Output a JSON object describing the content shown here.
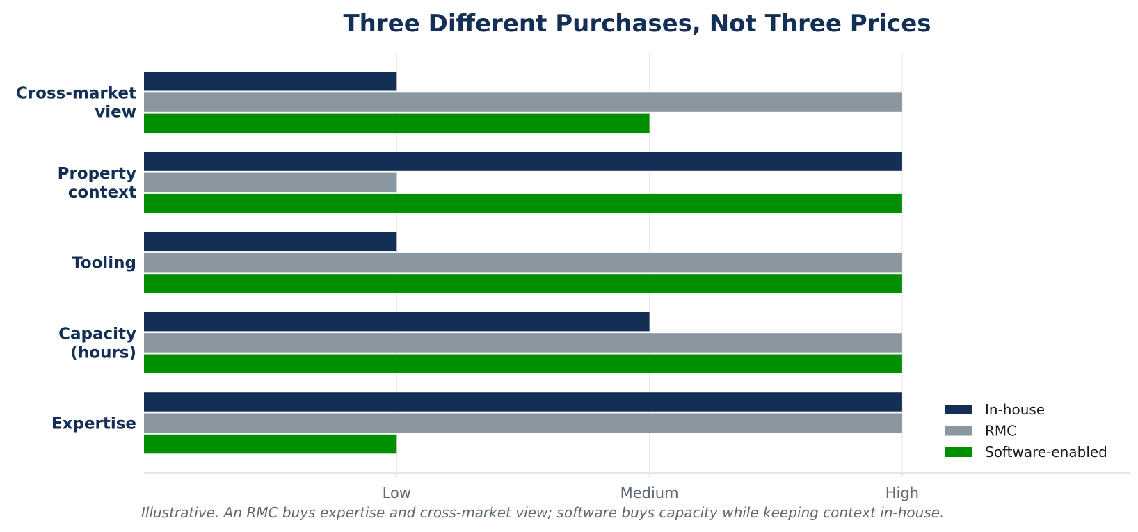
{
  "chart_data": {
    "type": "bar",
    "orientation": "horizontal",
    "title": "Three Different Purchases, Not Three Prices",
    "categories": [
      [
        "Cross-market",
        "view"
      ],
      [
        "Property",
        "context"
      ],
      [
        "Tooling"
      ],
      [
        "Capacity",
        "(hours)"
      ],
      [
        "Expertise"
      ]
    ],
    "x_ticks": [
      "Low",
      "Medium",
      "High"
    ],
    "xlim": [
      0,
      3.9
    ],
    "grid": true,
    "series": [
      {
        "name": "In-house",
        "color": "#132f55",
        "values": [
          1,
          3,
          1,
          2,
          3
        ]
      },
      {
        "name": "RMC",
        "color": "#8a96a0",
        "values": [
          3,
          1,
          3,
          3,
          3
        ]
      },
      {
        "name": "Software-enabled",
        "color": "#008f00",
        "values": [
          2,
          3,
          3,
          3,
          1
        ]
      }
    ],
    "legend_position": "lower-right",
    "caption": "Illustrative. An RMC buys expertise and cross-market view; software buys capacity while keeping context in-house."
  }
}
